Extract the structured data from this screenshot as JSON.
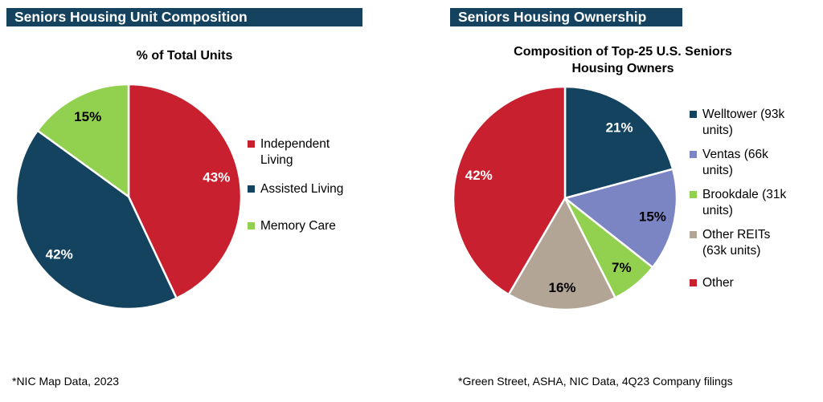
{
  "colors": {
    "header_bg": "#14425F",
    "header_text": "#FFFFFF",
    "dark_blue": "#14435F",
    "red": "#C8202F",
    "green": "#92D050",
    "purple": "#7C85C4",
    "tan": "#B2A595"
  },
  "panels": [
    {
      "header": "Seniors Housing Unit Composition"
    },
    {
      "header": "Seniors Housing Ownership"
    }
  ],
  "chart_data": [
    {
      "type": "pie",
      "title": "% of Total Units",
      "source": "*NIC Map Data, 2023",
      "legend_position": "right",
      "start_angle_deg": 0,
      "direction": "clockwise",
      "slices": [
        {
          "label": "Independent Living",
          "value": 43,
          "data_label": "43%",
          "color": "#C8202F",
          "label_color": "#FFFFFF"
        },
        {
          "label": "Assisted Living",
          "value": 42,
          "data_label": "42%",
          "color": "#14435F",
          "label_color": "#FFFFFF"
        },
        {
          "label": "Memory Care",
          "value": 15,
          "data_label": "15%",
          "color": "#92D050",
          "label_color": "#000000"
        }
      ]
    },
    {
      "type": "pie",
      "title": "Composition of Top-25 U.S. Seniors Housing Owners",
      "source": "*Green Street, ASHA, NIC Data, 4Q23 Company filings",
      "legend_position": "right",
      "start_angle_deg": 0,
      "direction": "clockwise",
      "slices": [
        {
          "label": "Welltower (93k units)",
          "value": 21,
          "data_label": "21%",
          "color": "#14435F",
          "label_color": "#FFFFFF"
        },
        {
          "label": "Ventas (66k units)",
          "value": 15,
          "data_label": "15%",
          "color": "#7C85C4",
          "label_color": "#000000"
        },
        {
          "label": "Brookdale (31k units)",
          "value": 7,
          "data_label": "7%",
          "color": "#92D050",
          "label_color": "#000000"
        },
        {
          "label": "Other REITs (63k units)",
          "value": 16,
          "data_label": "16%",
          "color": "#B2A595",
          "label_color": "#000000"
        },
        {
          "label": "Other",
          "value": 42,
          "data_label": "42%",
          "color": "#C8202F",
          "label_color": "#FFFFFF"
        }
      ]
    }
  ]
}
